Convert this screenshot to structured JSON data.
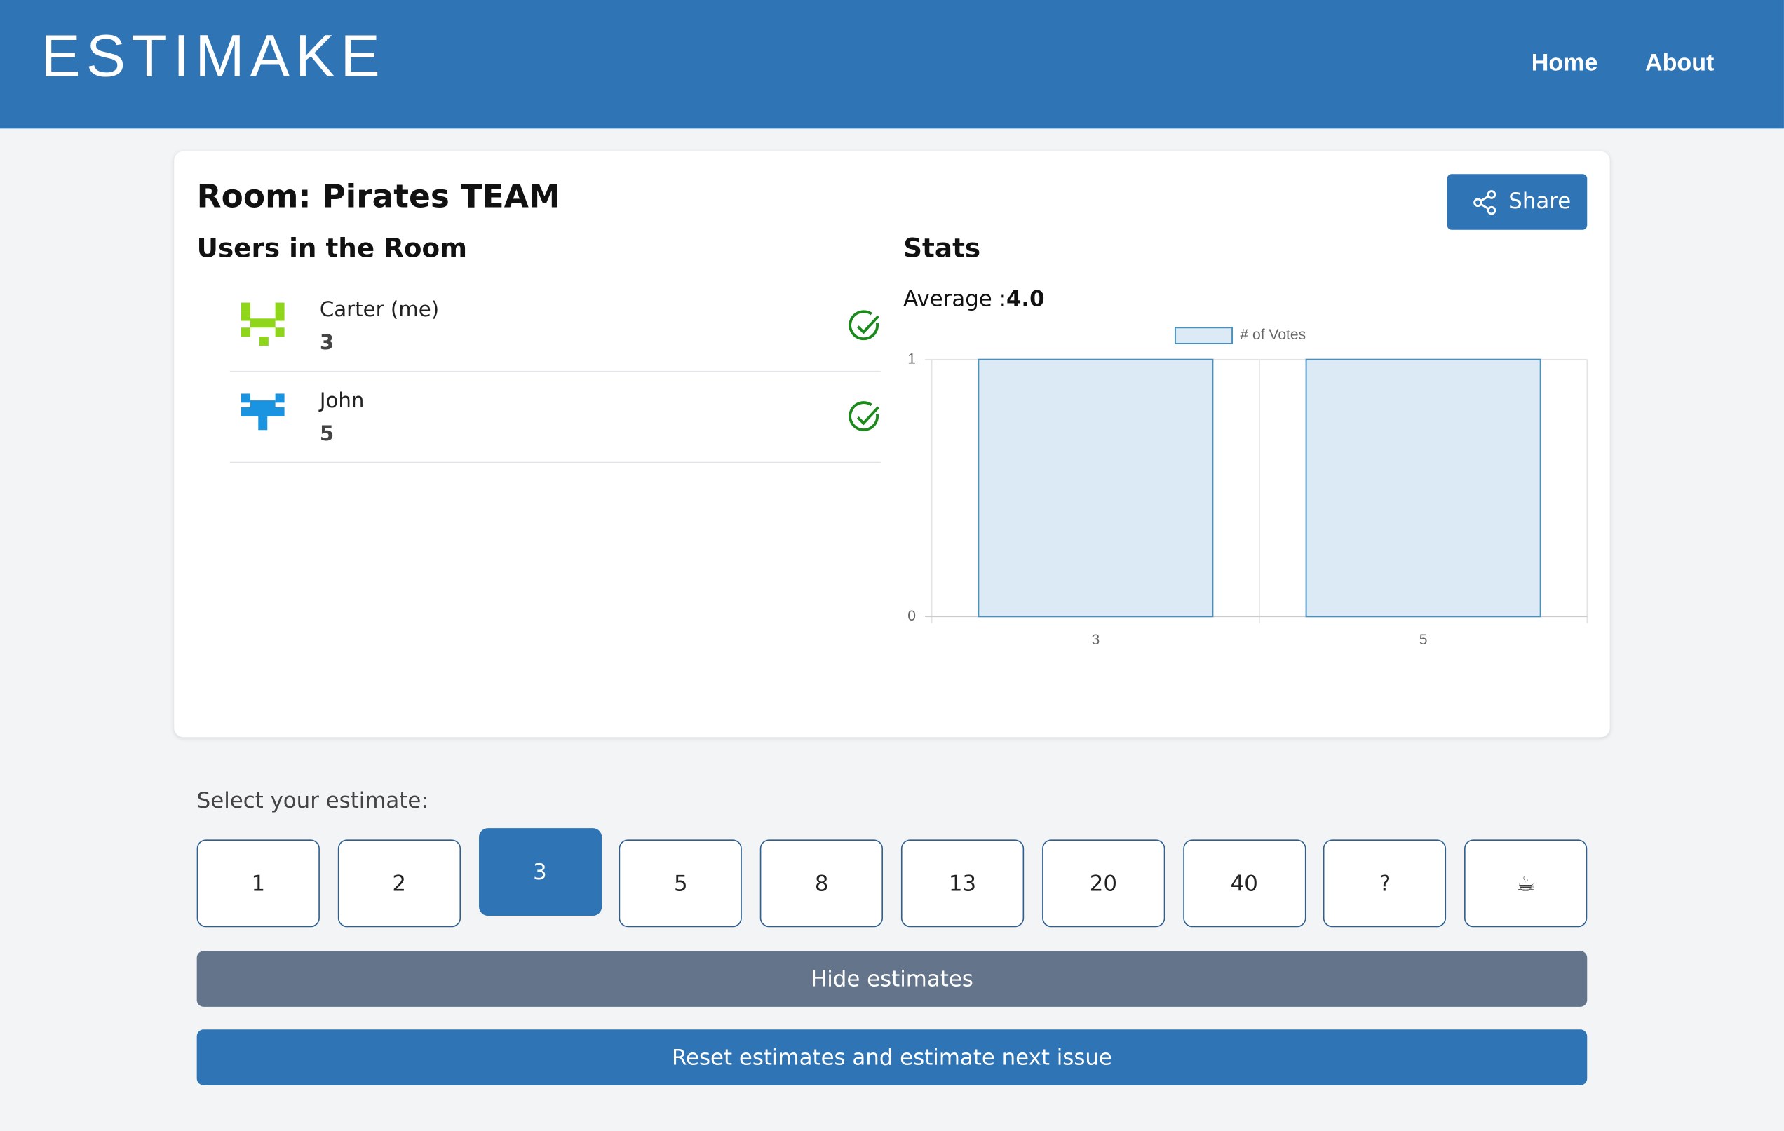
{
  "header": {
    "logo": "ESTIMAKE",
    "nav": [
      "Home",
      "About"
    ]
  },
  "room": {
    "title": "Room: Pirates TEAM",
    "share": "Share",
    "users_heading": "Users in the Room",
    "users": [
      {
        "name": "Carter (me)",
        "estimate": "3"
      },
      {
        "name": "John",
        "estimate": "5"
      }
    ],
    "stats_heading": "Stats",
    "average_label": "Average :",
    "average_value": "4.0"
  },
  "chart_data": {
    "type": "bar",
    "categories": [
      "3",
      "5"
    ],
    "series": [
      {
        "name": "# of Votes",
        "color": "#dbeaf5",
        "values": [
          1,
          1
        ]
      }
    ],
    "ylim": [
      0,
      1
    ],
    "yticks": [
      0,
      1
    ],
    "grid": true
  },
  "estimate": {
    "label": "Select your estimate:",
    "cards": [
      "1",
      "2",
      "3",
      "5",
      "8",
      "13",
      "20",
      "40",
      "?",
      "☕"
    ],
    "selected": 2
  },
  "actions": {
    "hide": "Hide estimates",
    "reset": "Reset estimates and estimate next issue"
  }
}
